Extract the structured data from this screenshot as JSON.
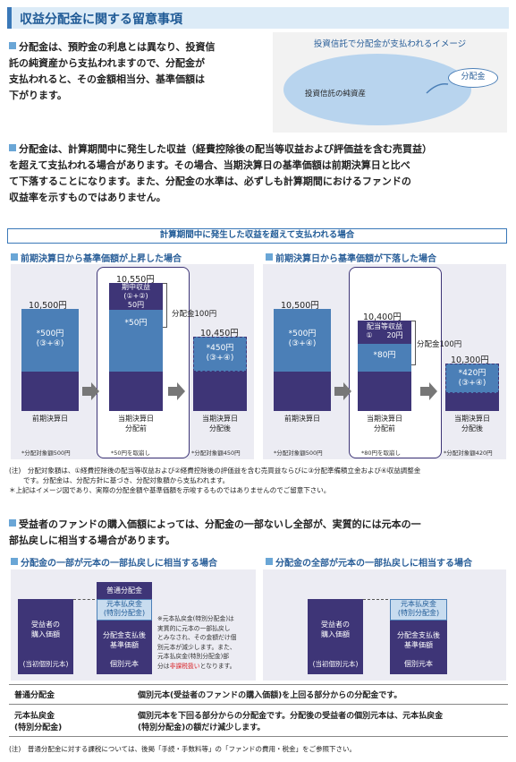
{
  "title": "収益分配金に関する留意事項",
  "para1": [
    "分配金は、預貯金の利息とは異なり、投資信",
    "託の純資産から支払われますので、分配金が",
    "支払われると、その金額相当分、基準価額は",
    "下がります。"
  ],
  "image": {
    "caption": "投資信託で分配金が支払われるイメージ",
    "net_assets": "投資信託の純資産",
    "dividend": "分配金"
  },
  "para2": [
    "分配金は、計算期間中に発生した収益（経費控除後の配当等収益および評価益を含む売買益）",
    "を超えて支払われる場合があります。その場合、当期決算日の基準価額は前期決算日と比べ",
    "て下落することになります。また、分配金の水準は、必ずしも計算期間におけるファンドの",
    "収益率を示すものではありません。"
  ],
  "section_box": "計算期間中に発生した収益を超えて支払われる場合",
  "left_chart": {
    "heading": "前期決算日から基準価額が上昇した場合",
    "bar1_value": "10,500円",
    "bar1_inner": "*500円",
    "bar1_inner2": "(③+④)",
    "bar1_label": "前期決算日",
    "bar1_note": "*分配対象額500円",
    "bar2_value": "10,550円",
    "bar2_top1": "期中収益",
    "bar2_top2": "(①+②)",
    "bar2_top3": "50円",
    "bar2_inner": "*50円",
    "bar2_dividend": "分配金100円",
    "bar2_label1": "当期決算日",
    "bar2_label2": "分配前",
    "bar2_note": "*50円を取崩し",
    "bar3_value": "10,450円",
    "bar3_inner": "*450円",
    "bar3_inner2": "(③+④)",
    "bar3_label1": "当期決算日",
    "bar3_label2": "分配後",
    "bar3_note": "*分配対象額450円"
  },
  "right_chart": {
    "heading": "前期決算日から基準価額が下落した場合",
    "bar1_value": "10,500円",
    "bar1_inner": "*500円",
    "bar1_inner2": "(③+④)",
    "bar1_label": "前期決算日",
    "bar1_note": "*分配対象額500円",
    "bar2_value": "10,400円",
    "bar2_top1": "配当等収益",
    "bar2_top2": "①　　20円",
    "bar2_inner": "*80円",
    "bar2_dividend": "分配金100円",
    "bar2_label1": "当期決算日",
    "bar2_label2": "分配前",
    "bar2_note": "*80円を取崩し",
    "bar3_value": "10,300円",
    "bar3_inner": "*420円",
    "bar3_inner2": "(③+④)",
    "bar3_label1": "当期決算日",
    "bar3_label2": "分配後",
    "bar3_note": "*分配対象額420円"
  },
  "notes": [
    "(注)　分配対象額は、①経費控除後の配当等収益および②経費控除後の評価益を含む売買益ならびに③分配準備積立金および④収益調整金",
    "です。分配金は、分配方針に基づき、分配対象額から支払われます。",
    "＊上記はイメージ図であり、実際の分配金額や基準価額を示唆するものではありませんのでご留意下さい。"
  ],
  "para3": [
    "受益者のファンドの購入価額によっては、分配金の一部ないし全部が、実質的には元本の一",
    "部払戻しに相当する場合があります。"
  ],
  "partial": {
    "heading": "分配金の一部が元本の一部払戻しに相当する場合",
    "ordinary": "普通分配金",
    "refund1": "元本払戻金",
    "refund2": "(特別分配金)",
    "buyer1": "受益者の",
    "buyer2": "購入価額",
    "buyer3": "(当初個別元本)",
    "after1": "分配金支払後",
    "after2": "基準価額",
    "after3": "個別元本",
    "note1": "※元本払戻金(特別分配金)は",
    "note2": "実質的に元本の一部払戻し",
    "note3": "とみなされ、その金額だけ個",
    "note4": "別元本が減少します。また、",
    "note5": "元本払戻金(特別分配金)部",
    "note6a": "分は",
    "note6b": "非課税扱い",
    "note6c": "となります。"
  },
  "full": {
    "heading": "分配金の全部が元本の一部払戻しに相当する場合",
    "refund1": "元本払戻金",
    "refund2": "(特別分配金)",
    "buyer1": "受益者の",
    "buyer2": "購入価額",
    "buyer3": "(当初個別元本)",
    "after1": "分配金支払後",
    "after2": "基準価額",
    "after3": "個別元本"
  },
  "definitions": [
    {
      "term": "普通分配金",
      "desc": "個別元本(受益者のファンドの購入価額)を上回る部分からの分配金です。"
    },
    {
      "term1": "元本払戻金",
      "term2": "(特別分配金)",
      "desc1": "個別元本を下回る部分からの分配金です。分配後の受益者の個別元本は、元本払戻金",
      "desc2": "(特別分配金)の額だけ減少します。"
    }
  ],
  "final_note": "(注)　普通分配金に対する課税については、後掲「手続・手数料等」の「ファンドの費用・税金」をご参照下さい。",
  "colors": {
    "blue": "#4b7fb7",
    "purple": "#3e3577",
    "light": "#dcebf7",
    "accent": "#1f5a96",
    "red": "#d9262b"
  }
}
